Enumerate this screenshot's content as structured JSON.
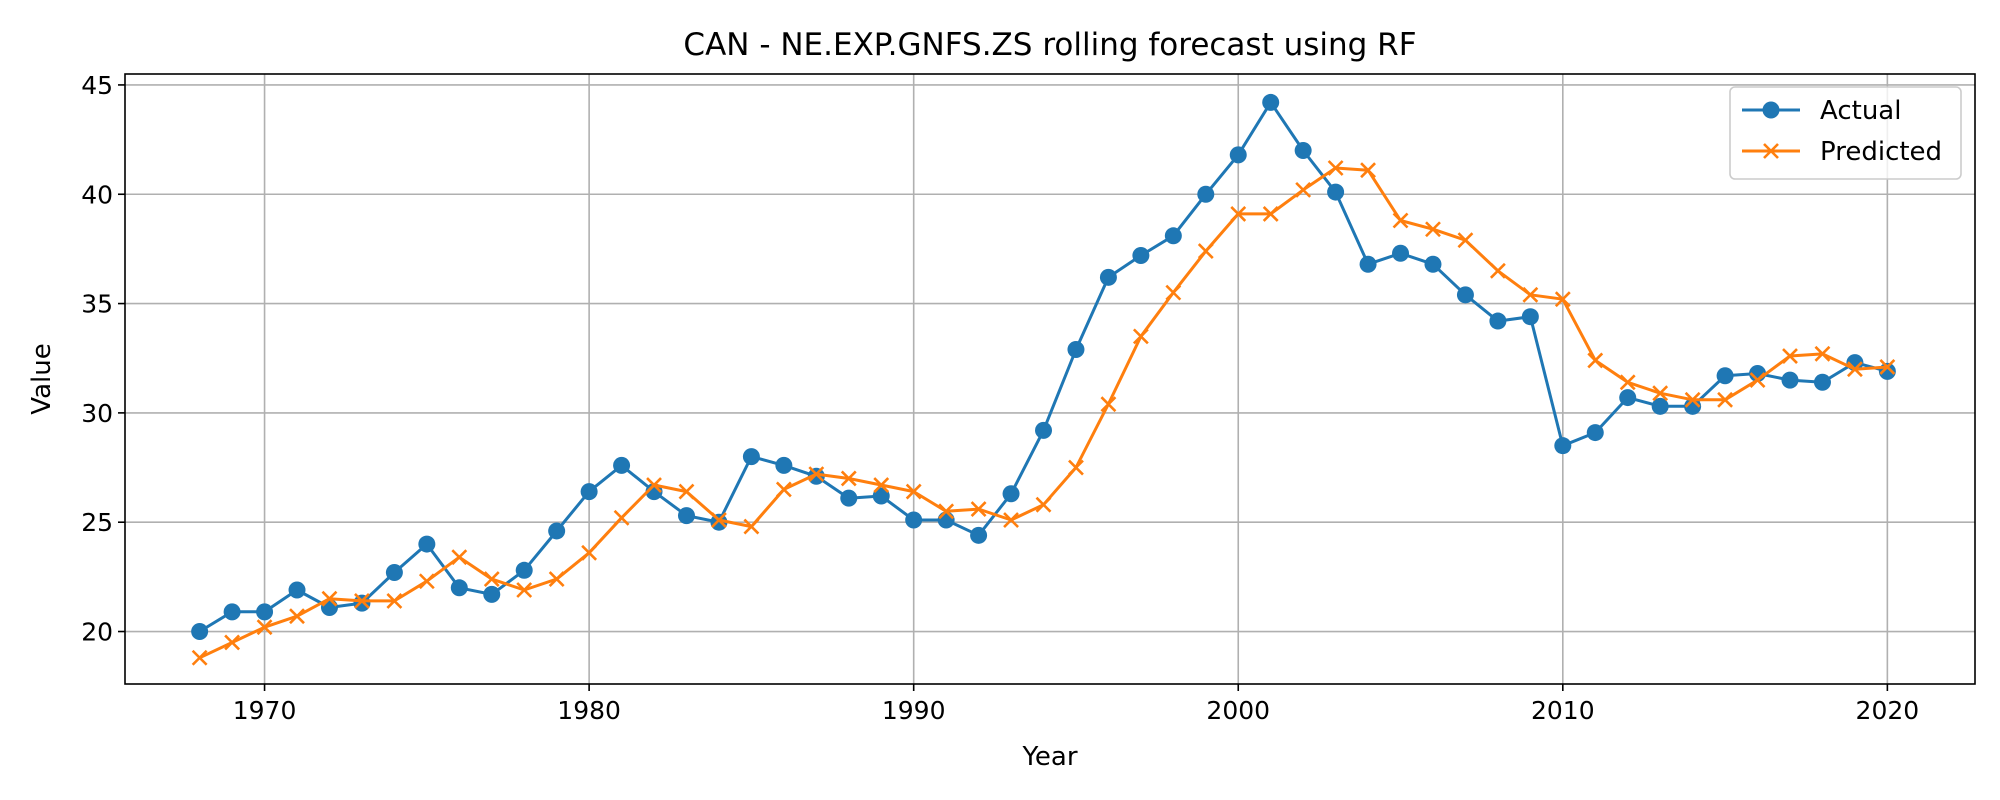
{
  "chart_data": {
    "type": "line",
    "title": "CAN - NE.EXP.GNFS.ZS rolling forecast using RF",
    "xlabel": "Year",
    "ylabel": "Value",
    "xlim": [
      1965.7,
      2022.7
    ],
    "ylim": [
      17.6,
      45.5
    ],
    "xticks": [
      1970,
      1980,
      1990,
      2000,
      2010,
      2020
    ],
    "yticks": [
      20,
      25,
      30,
      35,
      40,
      45
    ],
    "grid": true,
    "legend_position": "top-right",
    "x": [
      1968,
      1969,
      1970,
      1971,
      1972,
      1973,
      1974,
      1975,
      1976,
      1977,
      1978,
      1979,
      1980,
      1981,
      1982,
      1983,
      1984,
      1985,
      1986,
      1987,
      1988,
      1989,
      1990,
      1991,
      1992,
      1993,
      1994,
      1995,
      1996,
      1997,
      1998,
      1999,
      2000,
      2001,
      2002,
      2003,
      2004,
      2005,
      2006,
      2007,
      2008,
      2009,
      2010,
      2011,
      2012,
      2013,
      2014,
      2015,
      2016,
      2017,
      2018,
      2019,
      2020
    ],
    "series": [
      {
        "name": "Actual",
        "color": "#1f77b4",
        "marker": "circle",
        "values": [
          20.0,
          20.9,
          20.9,
          21.9,
          21.1,
          21.3,
          22.7,
          24.0,
          22.0,
          21.7,
          22.8,
          24.6,
          26.4,
          27.6,
          26.4,
          25.3,
          25.0,
          28.0,
          27.6,
          27.1,
          26.1,
          26.2,
          25.1,
          25.1,
          24.4,
          26.3,
          29.2,
          32.9,
          36.2,
          37.2,
          38.1,
          40.0,
          41.8,
          44.2,
          42.0,
          40.1,
          36.8,
          37.3,
          36.8,
          35.4,
          34.2,
          34.4,
          28.5,
          29.1,
          30.7,
          30.3,
          30.3,
          31.7,
          31.8,
          31.5,
          31.4,
          32.3,
          31.9
        ]
      },
      {
        "name": "Predicted",
        "color": "#ff7f0e",
        "marker": "x",
        "values": [
          18.8,
          19.5,
          20.2,
          20.7,
          21.5,
          21.4,
          21.4,
          22.3,
          23.4,
          22.4,
          21.9,
          22.4,
          23.6,
          25.2,
          26.7,
          26.4,
          25.1,
          24.8,
          26.5,
          27.2,
          27.0,
          26.7,
          26.4,
          25.5,
          25.6,
          25.1,
          25.8,
          27.5,
          30.4,
          33.5,
          35.5,
          37.4,
          39.1,
          39.1,
          40.2,
          41.2,
          41.1,
          38.8,
          38.4,
          37.9,
          36.5,
          35.4,
          35.2,
          32.4,
          31.4,
          30.9,
          30.6,
          30.6,
          31.5,
          32.6,
          32.7,
          32.0,
          32.1
        ]
      }
    ]
  }
}
